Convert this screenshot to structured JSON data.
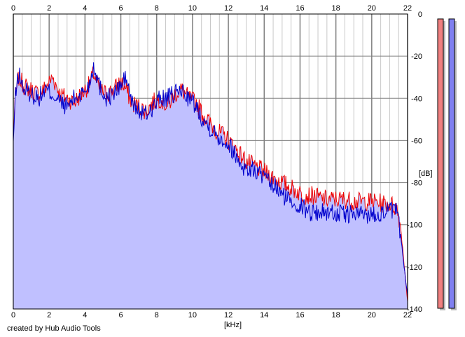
{
  "chart_data": {
    "type": "area",
    "xlabel": "[kHz]",
    "ylabel": "[dB]",
    "xlim": [
      0,
      22
    ],
    "ylim": [
      -140,
      0
    ],
    "x_ticks": [
      "0",
      "2",
      "4",
      "6",
      "8",
      "10",
      "12",
      "14",
      "16",
      "18",
      "20",
      "22"
    ],
    "x_tick_values": [
      0,
      2,
      4,
      6,
      8,
      10,
      12,
      14,
      16,
      18,
      20,
      22
    ],
    "y_ticks": [
      "0",
      "-20",
      "-40",
      "-60",
      "-80",
      "-100",
      "-120",
      "-140"
    ],
    "y_tick_values": [
      0,
      -20,
      -40,
      -60,
      -80,
      -100,
      -120,
      -140
    ],
    "grid": true,
    "colors": {
      "fill": "#c0c0ff",
      "left_channel": "#ee0000",
      "right_channel": "#0000cc",
      "grid_minor": "#c8c8c8",
      "grid_major": "#808080",
      "meter_left": "#f08080",
      "meter_right": "#8080f0"
    },
    "series": [
      {
        "color": "#ee0000",
        "x": [
          0,
          0.1,
          0.3,
          0.6,
          1.0,
          1.4,
          1.8,
          2.2,
          2.6,
          3.0,
          3.4,
          3.8,
          4.2,
          4.5,
          4.8,
          5.2,
          5.6,
          6.0,
          6.3,
          6.6,
          7.0,
          7.4,
          7.8,
          8.2,
          8.6,
          9.0,
          9.4,
          9.8,
          10.2,
          10.6,
          11.0,
          11.4,
          11.8,
          12.2,
          12.6,
          13.0,
          13.4,
          13.8,
          14.2,
          14.6,
          15.0,
          15.4,
          15.8,
          16.2,
          16.6,
          17.0,
          17.4,
          17.8,
          18.2,
          18.6,
          19.0,
          19.4,
          19.8,
          20.2,
          20.6,
          21.0,
          21.4,
          21.6,
          21.8,
          22.0
        ],
        "values": [
          -58,
          -40,
          -30,
          -34,
          -36,
          -38,
          -35,
          -30,
          -38,
          -40,
          -42,
          -38,
          -34,
          -28,
          -36,
          -38,
          -36,
          -32,
          -36,
          -42,
          -44,
          -46,
          -42,
          -40,
          -44,
          -38,
          -36,
          -40,
          -42,
          -48,
          -52,
          -56,
          -58,
          -62,
          -66,
          -70,
          -72,
          -74,
          -76,
          -78,
          -80,
          -82,
          -84,
          -86,
          -86,
          -87,
          -88,
          -88,
          -88,
          -88,
          -89,
          -89,
          -89,
          -89,
          -90,
          -90,
          -92,
          -100,
          -118,
          -136
        ]
      },
      {
        "color": "#0000cc",
        "x": [
          0,
          0.1,
          0.3,
          0.6,
          1.0,
          1.4,
          1.8,
          2.2,
          2.6,
          3.0,
          3.4,
          3.8,
          4.2,
          4.5,
          4.8,
          5.2,
          5.6,
          6.0,
          6.3,
          6.6,
          7.0,
          7.4,
          7.8,
          8.2,
          8.6,
          9.0,
          9.4,
          9.8,
          10.2,
          10.6,
          11.0,
          11.4,
          11.8,
          12.2,
          12.6,
          13.0,
          13.4,
          13.8,
          14.2,
          14.6,
          15.0,
          15.4,
          15.8,
          16.2,
          16.6,
          17.0,
          17.4,
          17.8,
          18.2,
          18.6,
          19.0,
          19.4,
          19.8,
          20.2,
          20.6,
          21.0,
          21.4,
          21.6,
          21.8,
          22.0
        ],
        "values": [
          -62,
          -40,
          -28,
          -36,
          -38,
          -40,
          -36,
          -38,
          -42,
          -44,
          -40,
          -38,
          -34,
          -24,
          -34,
          -40,
          -38,
          -34,
          -30,
          -42,
          -46,
          -48,
          -44,
          -40,
          -40,
          -38,
          -36,
          -40,
          -44,
          -50,
          -54,
          -58,
          -60,
          -64,
          -70,
          -74,
          -74,
          -76,
          -80,
          -82,
          -86,
          -88,
          -90,
          -92,
          -94,
          -94,
          -94,
          -94,
          -95,
          -95,
          -95,
          -95,
          -95,
          -95,
          -94,
          -93,
          -94,
          -104,
          -120,
          -134
        ]
      }
    ],
    "meters": [
      {
        "color": "#f08080",
        "level": 1.0
      },
      {
        "color": "#8080f0",
        "level": 1.0
      }
    ]
  },
  "footer": {
    "credit": "created by Hub Audio Tools"
  }
}
